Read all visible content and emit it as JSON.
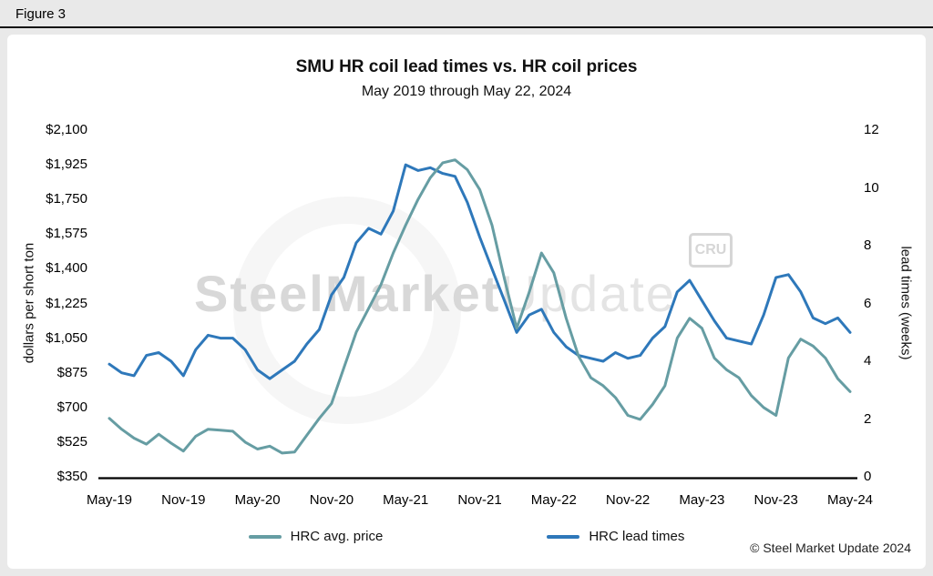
{
  "figure_label": "Figure 3",
  "title": "SMU HR coil lead times vs. HR coil prices",
  "subtitle": "May 2019 through May 22, 2024",
  "left_axis_title": "dollars per short ton",
  "right_axis_title": "lead times (weeks)",
  "copyright": "© Steel Market Update 2024",
  "watermark": {
    "text_bold": "SteelMarket",
    "text_light": "Update",
    "cru_label": "CRU"
  },
  "legend": [
    {
      "label": "HRC avg. price",
      "color": "#669da3"
    },
    {
      "label": "HRC lead times",
      "color": "#2e78ba"
    }
  ],
  "chart_data": {
    "type": "line",
    "title": "SMU HR coil lead times vs. HR coil prices",
    "subtitle": "May 2019 through May 22, 2024",
    "x_start": "May-2019",
    "x_end": "May-2024",
    "frequency": "monthly",
    "x_tick_labels": [
      "May-19",
      "Nov-19",
      "May-20",
      "Nov-20",
      "May-21",
      "Nov-21",
      "May-22",
      "Nov-22",
      "May-23",
      "Nov-23",
      "May-24"
    ],
    "left_axis": {
      "label": "dollars per short ton",
      "min": 350,
      "max": 2100,
      "step": 175,
      "ticks": [
        "$350",
        "$525",
        "$700",
        "$875",
        "$1,050",
        "$1,225",
        "$1,400",
        "$1,575",
        "$1,750",
        "$1,925",
        "$2,100"
      ]
    },
    "right_axis": {
      "label": "lead times (weeks)",
      "min": 0,
      "max": 12,
      "step": 2,
      "ticks": [
        "0",
        "2",
        "4",
        "6",
        "8",
        "10",
        "12"
      ]
    },
    "grid": false,
    "legend_position": "bottom",
    "series": [
      {
        "name": "HRC avg. price",
        "axis": "left",
        "color": "#669da3",
        "values": [
          645,
          590,
          545,
          515,
          565,
          520,
          480,
          555,
          590,
          585,
          580,
          525,
          490,
          505,
          470,
          475,
          560,
          645,
          720,
          900,
          1080,
          1200,
          1320,
          1480,
          1620,
          1750,
          1860,
          1935,
          1950,
          1900,
          1800,
          1620,
          1350,
          1100,
          1280,
          1480,
          1380,
          1150,
          960,
          850,
          810,
          750,
          660,
          640,
          715,
          810,
          1050,
          1150,
          1100,
          950,
          890,
          850,
          760,
          700,
          660,
          950,
          1045,
          1010,
          950,
          845,
          780
        ]
      },
      {
        "name": "HRC lead times",
        "axis": "right",
        "color": "#2e78ba",
        "values": [
          3.9,
          3.6,
          3.5,
          4.2,
          4.3,
          4.0,
          3.5,
          4.4,
          4.9,
          4.8,
          4.8,
          4.4,
          3.7,
          3.4,
          3.7,
          4.0,
          4.6,
          5.1,
          6.3,
          6.9,
          8.1,
          8.6,
          8.4,
          9.2,
          10.8,
          10.6,
          10.7,
          10.5,
          10.4,
          9.5,
          8.3,
          7.2,
          6.1,
          5.0,
          5.6,
          5.8,
          5.0,
          4.5,
          4.2,
          4.1,
          4.0,
          4.3,
          4.1,
          4.2,
          4.8,
          5.2,
          6.4,
          6.8,
          6.1,
          5.4,
          4.8,
          4.7,
          4.6,
          5.6,
          6.9,
          7.0,
          6.4,
          5.5,
          5.3,
          5.5,
          5.0
        ]
      }
    ]
  }
}
